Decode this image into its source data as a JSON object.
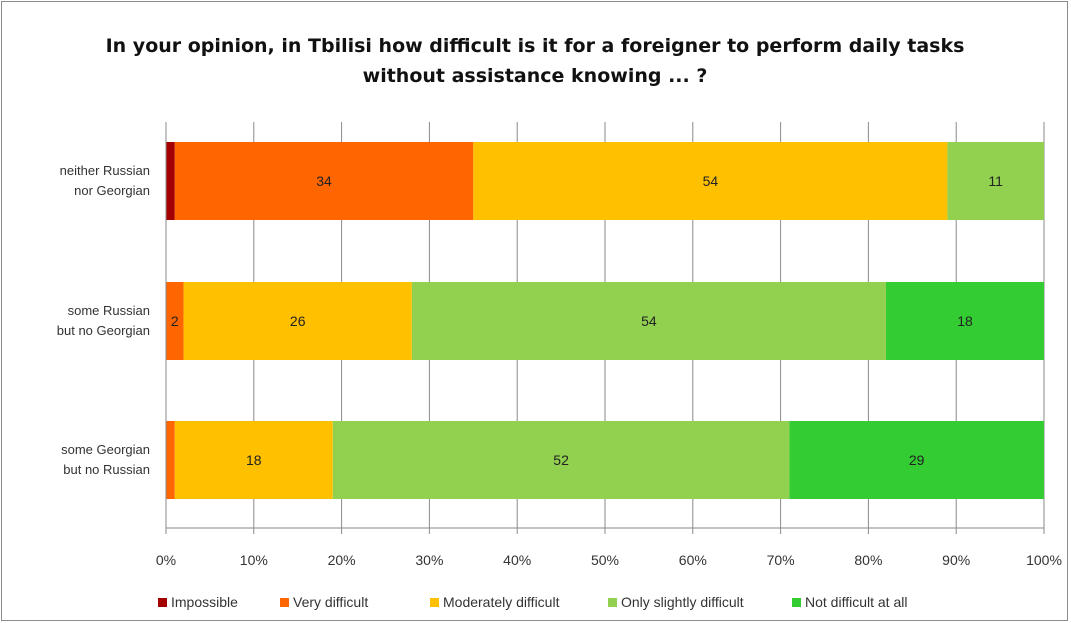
{
  "chart_data": {
    "type": "bar",
    "orientation": "horizontal",
    "stacked": "percent",
    "title": "In your opinion, in Tbilisi how difficult is it for a foreigner to perform daily tasks without assistance knowing ... ?",
    "title_lines": [
      "In your opinion, in Tbilisi how difficult is it for a foreigner to perform daily tasks",
      "without assistance knowing ... ?"
    ],
    "categories": [
      "neither Russian nor Georgian",
      "some Russian but no Georgian",
      "some Georgian but no Russian"
    ],
    "category_lines": [
      [
        "neither Russian",
        "nor Georgian"
      ],
      [
        "some Russian",
        "but no Georgian"
      ],
      [
        "some Georgian",
        "but no Russian"
      ]
    ],
    "series": [
      {
        "name": "Impossible",
        "color": "#A50000",
        "values": [
          1,
          0,
          0
        ],
        "labels": [
          "",
          "",
          ""
        ]
      },
      {
        "name": "Very difficult",
        "color": "#FF6600",
        "values": [
          34,
          2,
          1
        ],
        "labels": [
          "34",
          "2",
          ""
        ]
      },
      {
        "name": "Moderately difficult",
        "color": "#FFC000",
        "values": [
          54,
          26,
          18
        ],
        "labels": [
          "54",
          "26",
          "18"
        ]
      },
      {
        "name": "Only slightly difficult",
        "color": "#92D050",
        "values": [
          11,
          54,
          52
        ],
        "labels": [
          "11",
          "54",
          "52"
        ]
      },
      {
        "name": "Not difficult at all",
        "color": "#33CC33",
        "values": [
          0,
          18,
          29
        ],
        "labels": [
          "",
          "18",
          "29"
        ]
      }
    ],
    "xlim": [
      0,
      100
    ],
    "xticks": [
      "0%",
      "10%",
      "20%",
      "30%",
      "40%",
      "50%",
      "60%",
      "70%",
      "80%",
      "90%",
      "100%"
    ],
    "grid": true,
    "legend": "bottom"
  }
}
